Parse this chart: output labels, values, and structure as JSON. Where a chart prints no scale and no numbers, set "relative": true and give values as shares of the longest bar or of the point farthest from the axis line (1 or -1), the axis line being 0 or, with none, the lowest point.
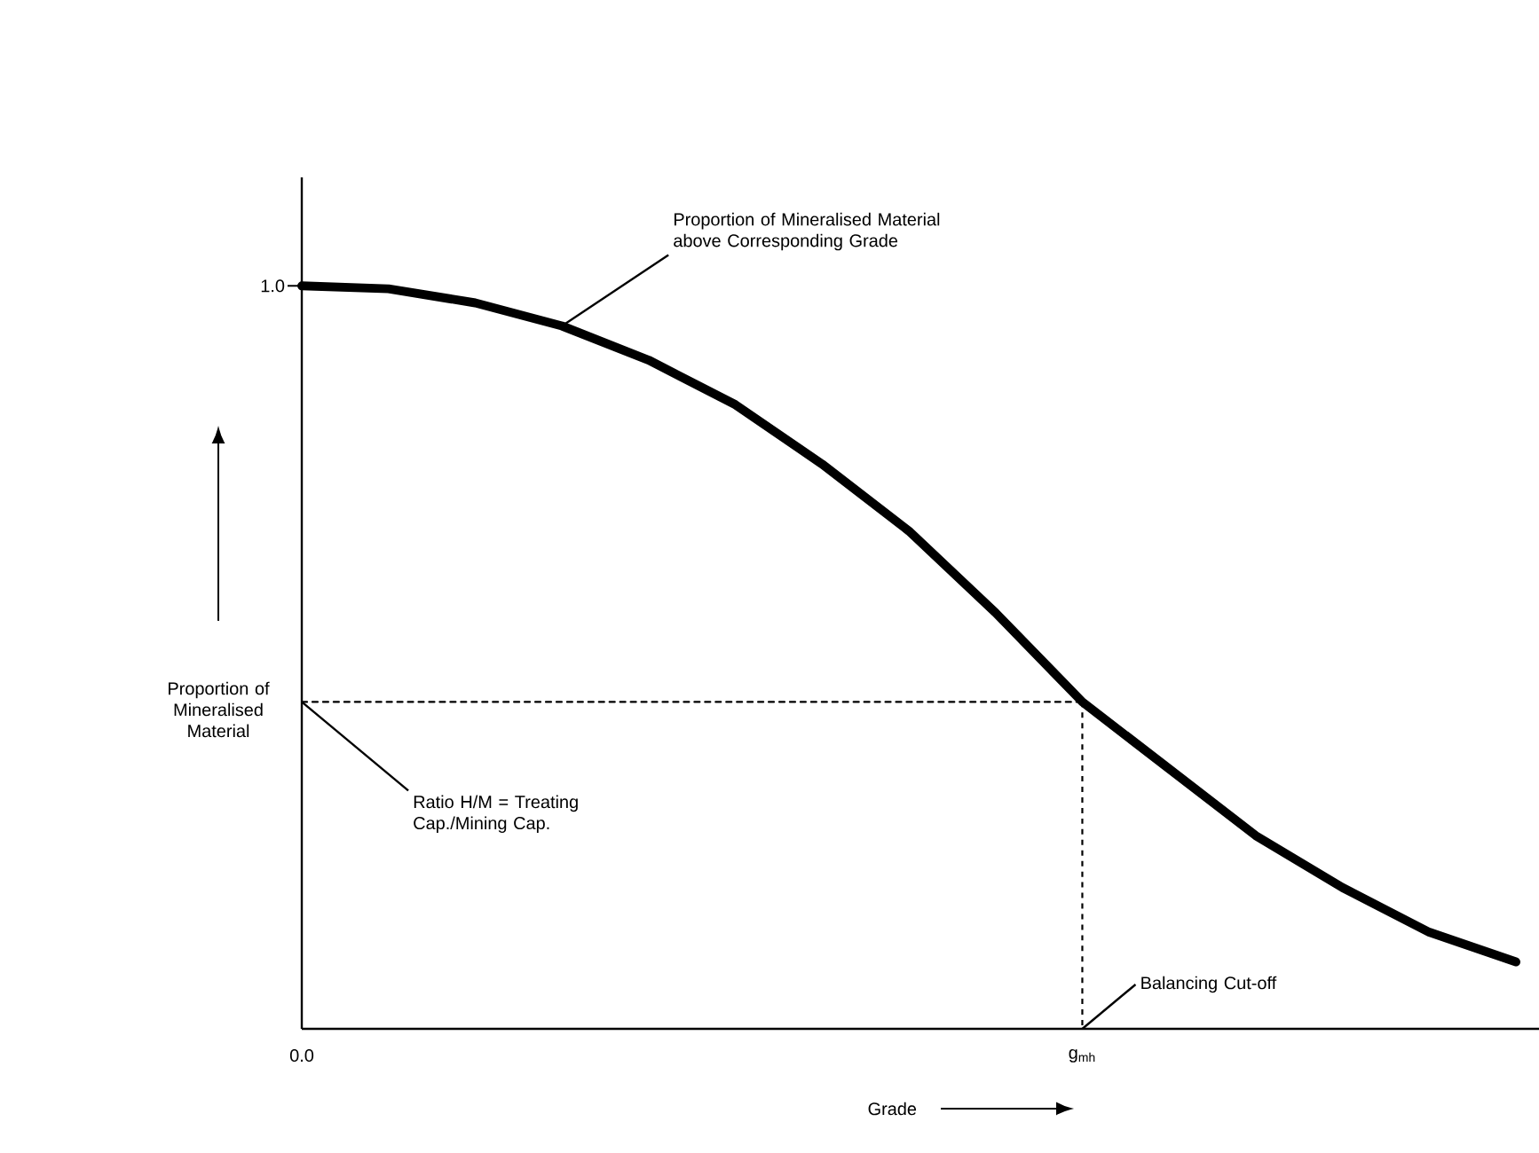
{
  "chart_data": {
    "type": "line",
    "xlabel": "Grade",
    "ylabel": "Proportion of Mineralised Material",
    "relative": true,
    "categories": [
      null,
      null,
      null,
      null,
      null,
      null,
      null,
      null,
      null,
      null,
      null,
      null,
      null,
      null,
      null
    ],
    "series": [
      {
        "color": "#000000",
        "line_style": "solid",
        "values": [
          1.0,
          0.996,
          0.977,
          0.946,
          0.9,
          0.84,
          0.76,
          0.67,
          0.56,
          0.44,
          0.35,
          0.26,
          0.19,
          0.13,
          0.09
        ]
      },
      {
        "color": "#000000",
        "line_style": "dashed",
        "values": [
          0.44,
          0.44,
          0.44,
          0.44,
          0.44,
          0.44,
          0.44,
          0.44,
          0.44,
          0.44,
          null,
          null,
          null,
          null,
          null
        ]
      }
    ],
    "annotations": [
      "Proportion of Mineralised Material above Corresponding Grade",
      "Ratio H/M = Treating Cap./Mining Cap.",
      "Balancing Cut-off",
      "1.0",
      "0.0",
      "g$_{mh}$"
    ]
  }
}
